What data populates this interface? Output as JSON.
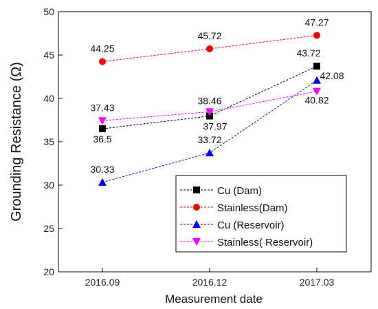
{
  "chart_data": {
    "type": "line",
    "xlabel": "Measurement date",
    "ylabel": "Grounding Resistance (Ω)",
    "categories": [
      "2016.09",
      "2016.12",
      "2017.03"
    ],
    "ylim": [
      20,
      50
    ],
    "yticks": [
      20,
      25,
      30,
      35,
      40,
      45,
      50
    ],
    "grid": false,
    "legend_position": "bottom-right",
    "series": [
      {
        "name": "Cu (Dam)",
        "values": [
          36.5,
          37.97,
          43.72
        ],
        "labels": [
          "36.5",
          "37.97",
          "43.72"
        ],
        "label_offsets": [
          [
            0,
            20
          ],
          [
            8,
            20
          ],
          [
            -12,
            -14
          ]
        ],
        "color": "#000000",
        "marker": "square"
      },
      {
        "name": "Stainless(Dam)",
        "values": [
          44.25,
          45.72,
          47.27
        ],
        "labels": [
          "44.25",
          "45.72",
          "47.27"
        ],
        "label_offsets": [
          [
            0,
            -14
          ],
          [
            0,
            -14
          ],
          [
            0,
            -14
          ]
        ],
        "color": "#ff0000",
        "marker": "circle"
      },
      {
        "name": "Cu (Reservoir)",
        "values": [
          30.33,
          33.72,
          42.08
        ],
        "labels": [
          "30.33",
          "33.72",
          "42.08"
        ],
        "label_offsets": [
          [
            0,
            -14
          ],
          [
            0,
            -14
          ],
          [
            22,
            -2
          ]
        ],
        "color": "#0000ff",
        "marker": "triangle-up"
      },
      {
        "name": "Stainless( Reservoir)",
        "values": [
          37.43,
          38.46,
          40.82
        ],
        "labels": [
          "37.43",
          "38.46",
          "40.82"
        ],
        "label_offsets": [
          [
            0,
            -14
          ],
          [
            0,
            -11
          ],
          [
            0,
            18
          ]
        ],
        "color": "#ff00ff",
        "marker": "triangle-down"
      }
    ]
  }
}
